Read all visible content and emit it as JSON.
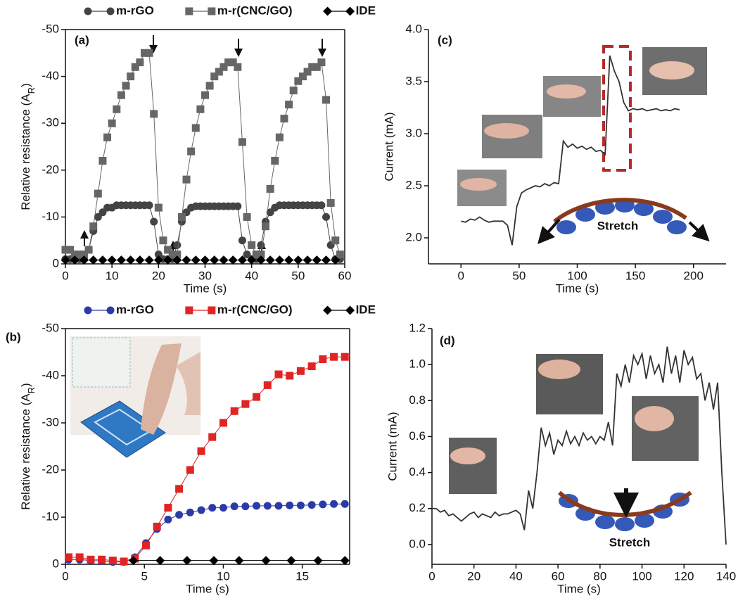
{
  "chart_data": [
    {
      "type": "line",
      "panel_label": "(a)",
      "xlabel": "Time (s)",
      "ylabel": [
        "Relative resistance (A",
        "R",
        ")"
      ],
      "xlim": [
        0,
        60
      ],
      "xticks": [
        0,
        10,
        20,
        30,
        40,
        50,
        60
      ],
      "ylim": [
        0,
        -50
      ],
      "yticks": [
        0,
        -10,
        -20,
        -30,
        -40,
        -50
      ],
      "box": true,
      "legend": "top",
      "x": [
        0,
        1,
        2,
        3,
        4,
        5,
        6,
        7,
        8,
        9,
        10,
        11,
        12,
        13,
        14,
        15,
        16,
        17,
        18,
        19,
        20,
        21,
        22,
        23,
        24,
        25,
        26,
        27,
        28,
        29,
        30,
        31,
        32,
        33,
        34,
        35,
        36,
        37,
        38,
        39,
        40,
        41,
        42,
        43,
        44,
        45,
        46,
        47,
        48,
        49,
        50,
        51,
        52,
        53,
        54,
        55,
        56,
        57,
        58,
        59
      ],
      "series": [
        {
          "name": "m-rGO",
          "color": "#444444",
          "marker": "circle",
          "values": [
            -1,
            -1,
            -1,
            -1,
            -1,
            -3,
            -7,
            -10,
            -11,
            -12,
            -12,
            -12.5,
            -12.5,
            -12.5,
            -12.5,
            -12.5,
            -12.5,
            -12.5,
            -12.5,
            -9,
            -2,
            -1,
            -1,
            -1,
            -4,
            -9,
            -11,
            -12,
            -12.3,
            -12.3,
            -12.3,
            -12.3,
            -12.3,
            -12.3,
            -12.3,
            -12.3,
            -12.3,
            -12.3,
            -5,
            -2,
            -1,
            -1,
            -4,
            -9,
            -11,
            -12,
            -12.5,
            -12.5,
            -12.5,
            -12.5,
            -12.5,
            -12.5,
            -12.5,
            -12.5,
            -12.5,
            -12.5,
            -10,
            -4,
            -1,
            -1
          ]
        },
        {
          "name": "m-r(CNC/GO)",
          "color": "#666666",
          "marker": "square",
          "values": [
            -3,
            -3,
            -2,
            -2,
            -2,
            -3,
            -8,
            -15,
            -22,
            -27,
            -30,
            -33,
            -36,
            -38,
            -40,
            -42,
            -43,
            -45,
            -45,
            -32,
            -12,
            -5,
            -3,
            -2,
            -2,
            -10,
            -18,
            -24,
            -29,
            -33,
            -36,
            -38,
            -40,
            -41,
            -42,
            -43,
            -43,
            -42,
            -26,
            -10,
            -4,
            -2,
            -2,
            -8,
            -16,
            -22,
            -27,
            -31,
            -34,
            -37,
            -39,
            -40,
            -41,
            -42,
            -42,
            -43,
            -35,
            -13,
            -5,
            -2
          ]
        },
        {
          "name": "IDE",
          "color": "#000000",
          "marker": "diamond",
          "x": [
            0,
            2,
            4,
            6,
            8,
            10,
            12,
            14,
            16,
            18,
            20,
            22,
            24,
            26,
            28,
            30,
            32,
            34,
            36,
            38,
            40,
            42,
            44,
            46,
            48,
            50,
            52,
            54,
            56,
            58
          ],
          "values": [
            -0.8,
            -0.8,
            -0.8,
            -0.8,
            -0.8,
            -0.8,
            -0.8,
            -0.8,
            -0.8,
            -0.8,
            -0.8,
            -0.8,
            -0.8,
            -0.8,
            -0.8,
            -0.8,
            -0.8,
            -0.8,
            -0.8,
            -0.8,
            -0.8,
            -0.8,
            -0.8,
            -0.8,
            -0.8,
            -0.8,
            -0.8,
            -0.8,
            -0.8,
            -0.8
          ]
        }
      ]
    },
    {
      "type": "line",
      "panel_label": "(b)",
      "xlabel": "Time (s)",
      "ylabel": [
        "Relative resistance (A",
        "R",
        ")"
      ],
      "xlim": [
        0,
        18
      ],
      "xticks": [
        0,
        5,
        10,
        15
      ],
      "ylim": [
        0,
        -50
      ],
      "yticks": [
        0,
        -10,
        -20,
        -30,
        -40,
        -50
      ],
      "box": true,
      "legend": "top",
      "x": [
        0.2,
        0.9,
        1.6,
        2.3,
        3.0,
        3.7,
        4.4,
        5.1,
        5.8,
        6.5,
        7.2,
        7.9,
        8.6,
        9.3,
        10.0,
        10.7,
        11.4,
        12.1,
        12.8,
        13.5,
        14.2,
        14.9,
        15.6,
        16.3,
        17.0,
        17.7
      ],
      "series": [
        {
          "name": "m-rGO",
          "color": "#2b3aa8",
          "marker": "circle",
          "values": [
            -1,
            -1,
            -0.8,
            -0.7,
            -0.5,
            -0.5,
            -1.5,
            -4.5,
            -7.5,
            -9.5,
            -10.5,
            -11,
            -11.5,
            -12,
            -12,
            -12.3,
            -12.3,
            -12.4,
            -12.4,
            -12.4,
            -12.5,
            -12.5,
            -12.6,
            -12.7,
            -12.8,
            -12.8
          ]
        },
        {
          "name": "m-r(CNC/GO)",
          "color": "#e02424",
          "marker": "square",
          "values": [
            -1.5,
            -1.5,
            -1,
            -1,
            -0.8,
            -0.6,
            -1.2,
            -4,
            -8,
            -12,
            -16,
            -20,
            -24,
            -27,
            -30,
            -32.5,
            -34,
            -35.5,
            -38,
            -40.3,
            -40,
            -41,
            -42,
            -43.5,
            -44,
            -44
          ]
        },
        {
          "name": "IDE",
          "color": "#000000",
          "marker": "diamond",
          "x": [
            4.3,
            6.0,
            7.7,
            9.4,
            11.0,
            12.7,
            14.3,
            16.0,
            17.7
          ],
          "values": [
            -0.8,
            -0.8,
            -0.8,
            -0.8,
            -0.8,
            -0.8,
            -0.8,
            -0.8,
            -0.8
          ]
        }
      ]
    },
    {
      "type": "line",
      "panel_label": "(c)",
      "xlabel": "Time (s)",
      "ylabel": "Current (mA)",
      "annotation": "Stretch",
      "xlim": [
        -28,
        228
      ],
      "xticks": [
        0,
        50,
        100,
        150,
        200
      ],
      "ylim": [
        1.75,
        4.0
      ],
      "yticks": [
        {
          "value": 2,
          "label": "2.0"
        },
        2.5,
        {
          "value": 3,
          "label": "3.0"
        },
        3.5,
        {
          "value": 4,
          "label": "4.0"
        }
      ],
      "box": false,
      "x": [
        0,
        4,
        8,
        12,
        16,
        20,
        24,
        28,
        32,
        36,
        40,
        44,
        48,
        52,
        56,
        60,
        64,
        68,
        72,
        76,
        80,
        84,
        88,
        92,
        96,
        100,
        104,
        108,
        112,
        116,
        120,
        124,
        128,
        132,
        136,
        140,
        144,
        148,
        152,
        156,
        160,
        164,
        168,
        172,
        176,
        180,
        184,
        188
      ],
      "series": [
        {
          "name": null,
          "color": "#333333",
          "marker": "none",
          "values": [
            2.16,
            2.15,
            2.18,
            2.17,
            2.2,
            2.17,
            2.15,
            2.16,
            2.16,
            2.16,
            2.12,
            1.93,
            2.3,
            2.43,
            2.46,
            2.48,
            2.5,
            2.49,
            2.52,
            2.5,
            2.53,
            2.52,
            2.93,
            2.87,
            2.9,
            2.86,
            2.88,
            2.85,
            2.87,
            2.83,
            2.84,
            2.8,
            3.75,
            3.6,
            3.5,
            3.3,
            3.22,
            3.24,
            3.23,
            3.24,
            3.22,
            3.23,
            3.24,
            3.22,
            3.23,
            3.22,
            3.24,
            3.23
          ]
        }
      ]
    },
    {
      "type": "line",
      "panel_label": "(d)",
      "xlabel": "Time (s)",
      "ylabel": "Current (mA)",
      "annotation": "Stretch",
      "xlim": [
        0,
        140
      ],
      "xticks": [
        0,
        20,
        40,
        60,
        80,
        100,
        120,
        140
      ],
      "ylim": [
        -0.11,
        1.2
      ],
      "yticks": [
        {
          "value": 0,
          "label": "0.0"
        },
        0.2,
        0.4,
        0.6,
        0.8,
        {
          "value": 1,
          "label": "1.0"
        },
        1.2
      ],
      "box": false,
      "x": [
        0,
        2,
        4,
        6,
        8,
        10,
        12,
        14,
        16,
        18,
        20,
        22,
        24,
        26,
        28,
        30,
        32,
        34,
        36,
        38,
        40,
        42,
        44,
        46,
        48,
        50,
        52,
        54,
        56,
        58,
        60,
        62,
        64,
        66,
        68,
        70,
        72,
        74,
        76,
        78,
        80,
        82,
        84,
        86,
        88,
        90,
        92,
        94,
        96,
        98,
        100,
        102,
        104,
        106,
        108,
        110,
        112,
        114,
        116,
        118,
        120,
        122,
        124,
        126,
        128,
        130,
        132,
        134,
        136,
        138,
        140
      ],
      "series": [
        {
          "name": null,
          "color": "#333333",
          "marker": "none",
          "values": [
            0.2,
            0.2,
            0.18,
            0.19,
            0.16,
            0.17,
            0.15,
            0.13,
            0.15,
            0.17,
            0.18,
            0.15,
            0.17,
            0.16,
            0.15,
            0.18,
            0.16,
            0.17,
            0.17,
            0.18,
            0.19,
            0.17,
            0.08,
            0.3,
            0.2,
            0.4,
            0.65,
            0.55,
            0.62,
            0.5,
            0.58,
            0.55,
            0.63,
            0.56,
            0.6,
            0.55,
            0.62,
            0.58,
            0.6,
            0.56,
            0.6,
            0.58,
            0.68,
            0.55,
            0.95,
            0.88,
            1.0,
            0.9,
            1.05,
            1.0,
            1.06,
            0.92,
            1.05,
            0.95,
            1.0,
            0.9,
            1.1,
            0.95,
            1.05,
            0.9,
            1.08,
            1.0,
            1.04,
            0.92,
            0.95,
            0.8,
            0.9,
            0.75,
            0.9,
            0.4,
            0.0
          ]
        }
      ]
    }
  ]
}
